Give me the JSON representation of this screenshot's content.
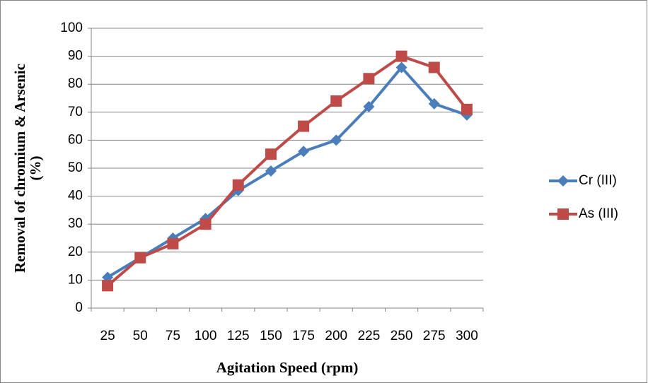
{
  "chart_data": {
    "type": "line",
    "xlabel": "Agitation Speed (rpm)",
    "ylabel": [
      "Removal of chromium & Arsenic",
      "(%)"
    ],
    "categories": [
      "25",
      "50",
      "75",
      "100",
      "125",
      "150",
      "175",
      "200",
      "225",
      "250",
      "275",
      "300"
    ],
    "series": [
      {
        "name": "Cr (III)",
        "color": "#4a7ebb",
        "marker": "diamond",
        "values": [
          11,
          18,
          25,
          32,
          42,
          49,
          56,
          60,
          72,
          86,
          73,
          69
        ]
      },
      {
        "name": "As (III)",
        "color": "#be4b48",
        "marker": "square",
        "values": [
          8,
          18,
          23,
          30,
          44,
          55,
          65,
          74,
          82,
          90,
          86,
          71
        ]
      }
    ],
    "ylim": [
      0,
      100
    ],
    "yticks": [
      0,
      10,
      20,
      30,
      40,
      50,
      60,
      70,
      80,
      90,
      100
    ],
    "grid": true,
    "legend": "right"
  }
}
